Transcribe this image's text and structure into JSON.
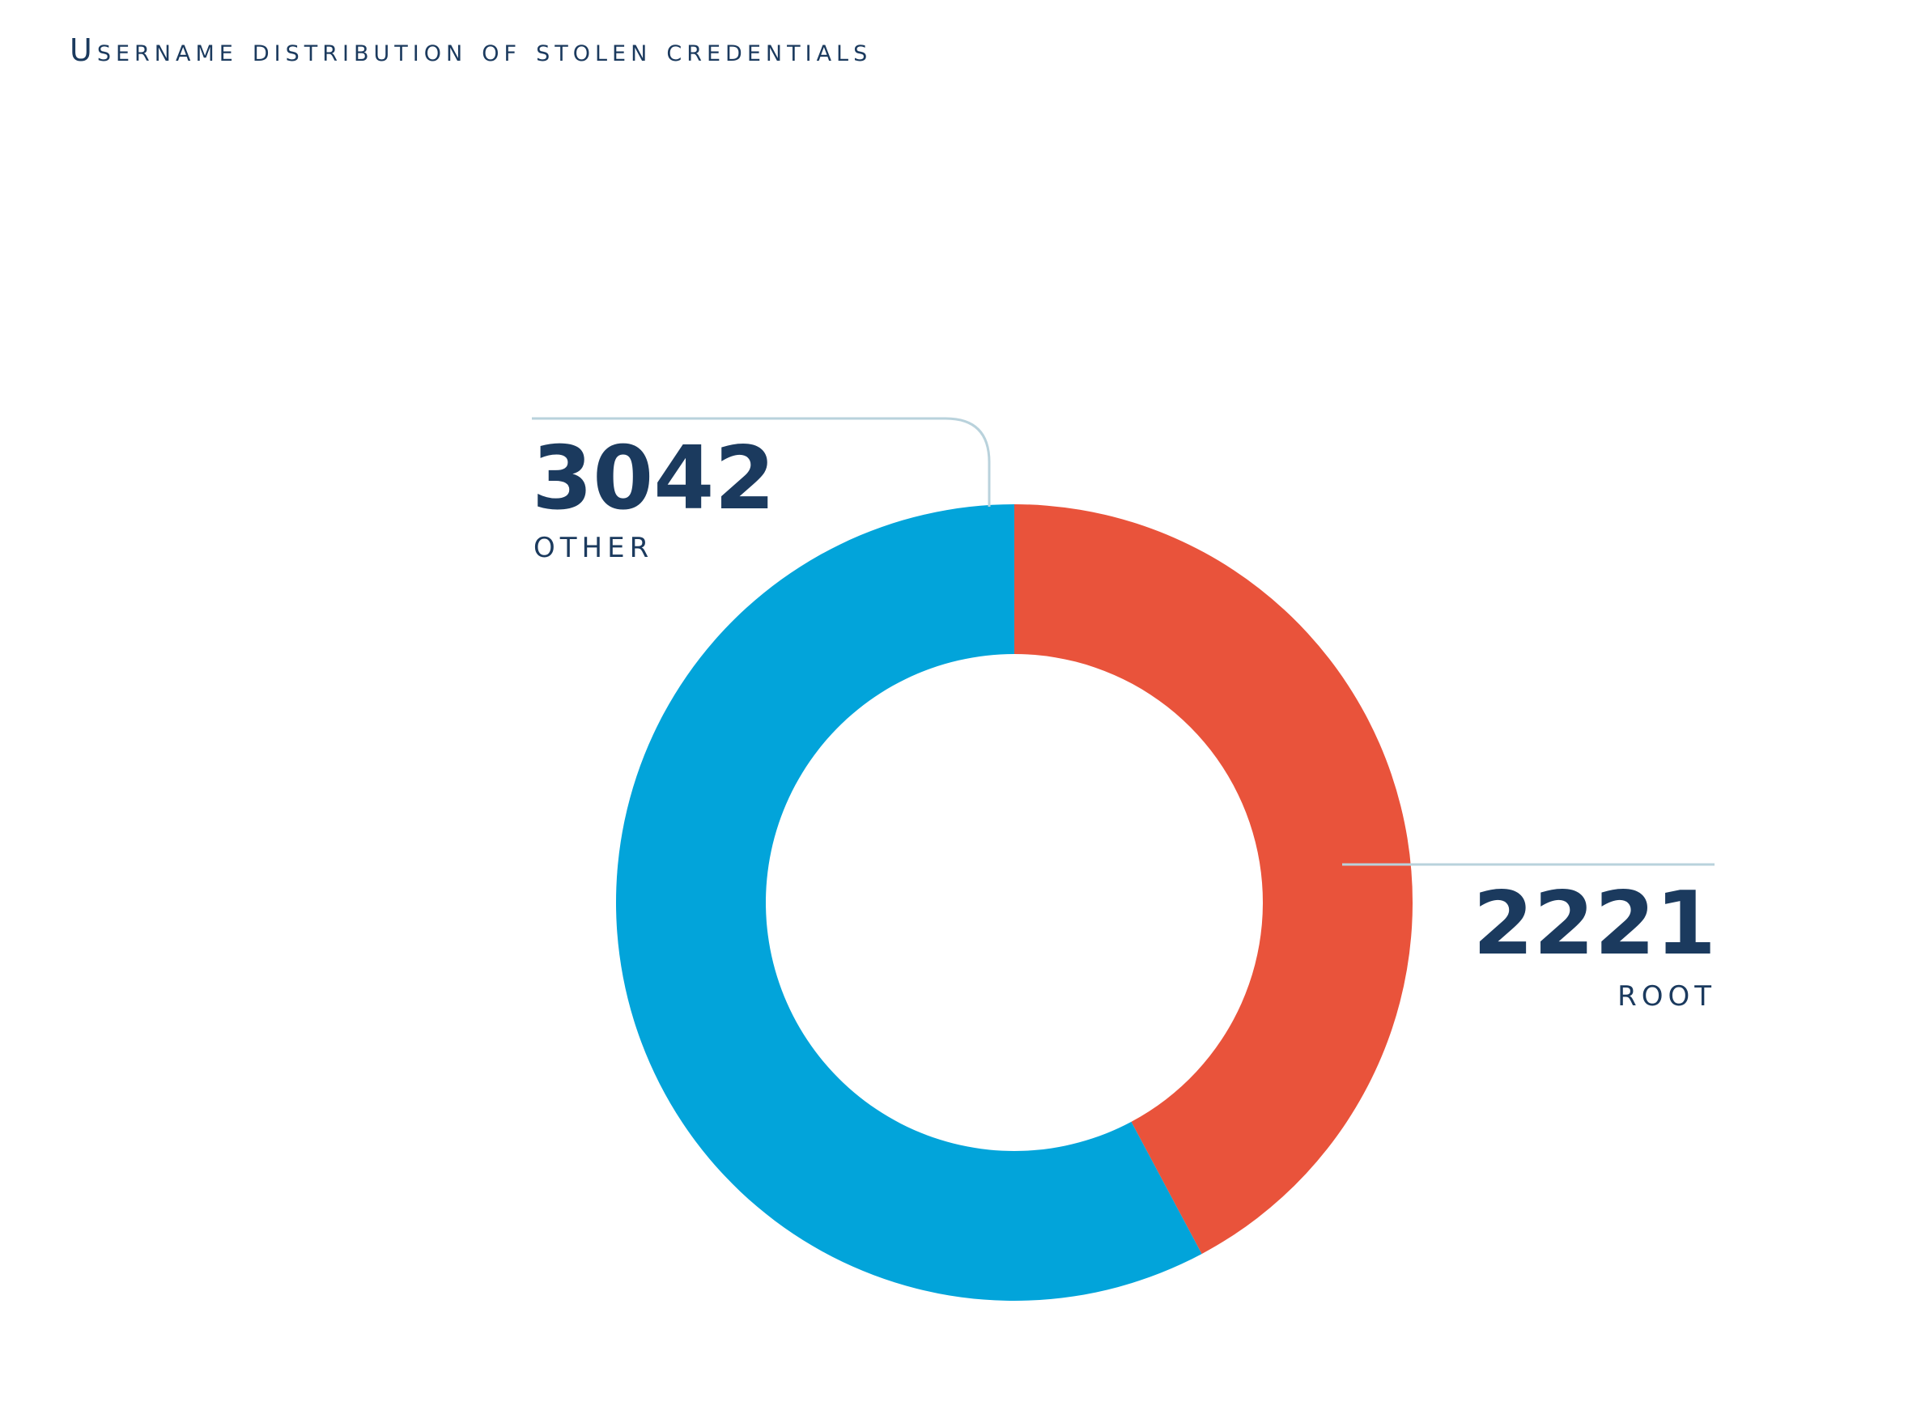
{
  "chart_data": {
    "type": "pie",
    "donut": true,
    "title": "Username distribution of stolen credentials",
    "slices": [
      {
        "label": "ROOT",
        "value": 2221,
        "color": "#e9533b"
      },
      {
        "label": "OTHER",
        "value": 3042,
        "color": "#02a4da"
      }
    ],
    "leader_color": "#b9d2dc"
  }
}
